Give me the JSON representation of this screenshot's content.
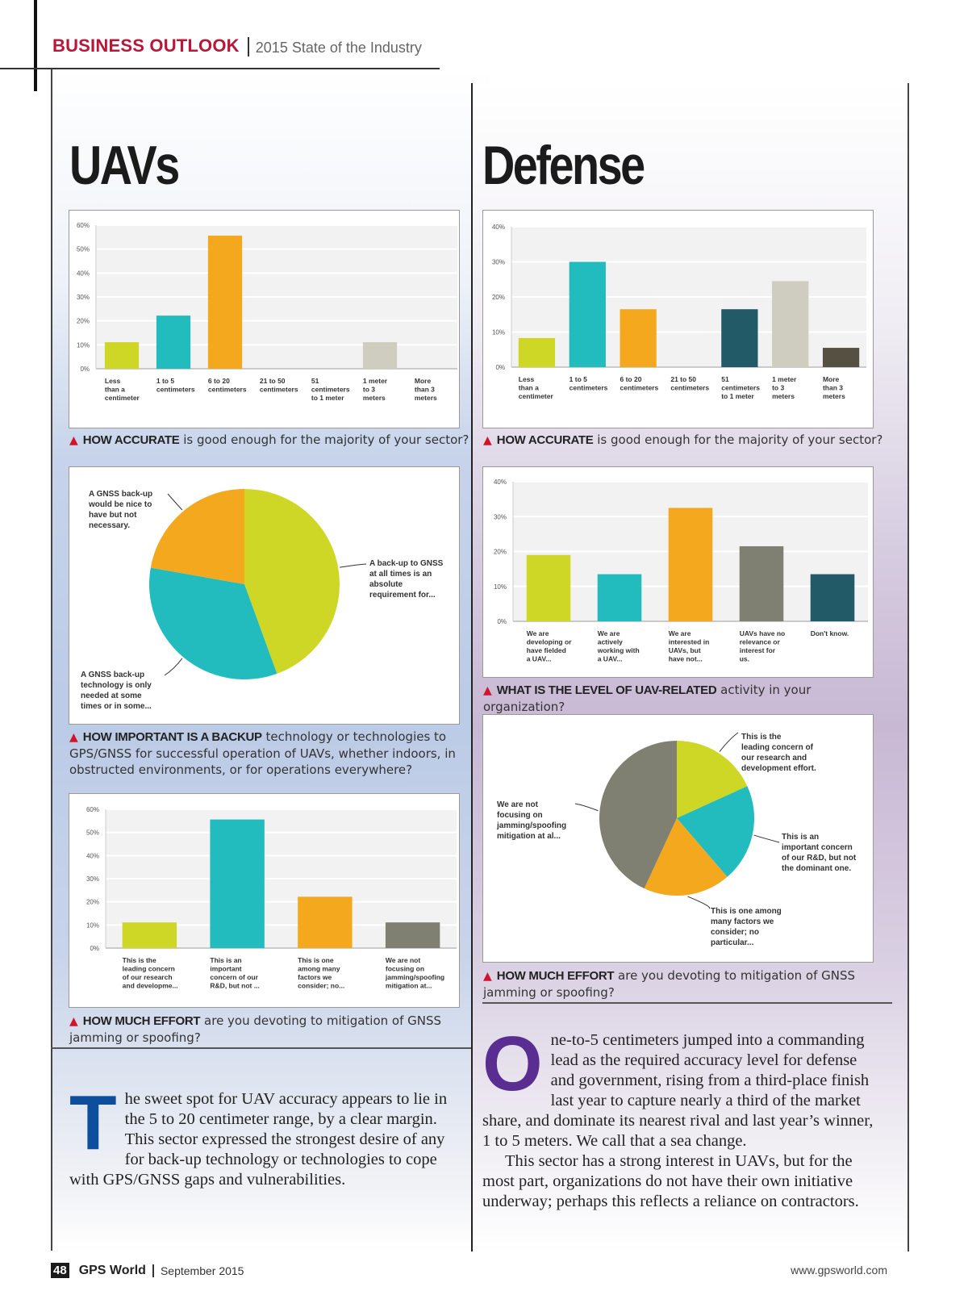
{
  "header": {
    "section": "BUSINESS OUTLOOK",
    "subtitle": "2015 State of the Industry"
  },
  "colors": {
    "lime": "#cfd726",
    "teal": "#22bcbe",
    "orange": "#f4a81d",
    "beige": "#cfccc0",
    "gray": "#7f8072",
    "navy": "#235a68",
    "darkbrown": "#555042",
    "accent_red": "#d0142c",
    "section_red": "#b8173a"
  },
  "uavs": {
    "title": "UAVs",
    "q1": {
      "bold": "HOW ACCURATE",
      "rest": " is good enough for the majority of your sector?"
    },
    "q2": {
      "bold": "HOW IMPORTANT IS A BACKUP",
      "rest": " technology or technologies to GPS/GNSS for successful operation of UAVs, whether indoors, in obstructed environments, or for operations everywhere?"
    },
    "q3": {
      "bold": "HOW MUCH EFFORT",
      "rest": " are you devoting to mitigation of GNSS jamming or spoofing?"
    },
    "dropcap": "T",
    "body": "he sweet spot for UAV accuracy appears to lie in the 5 to 20 centimeter range, by a clear margin. This sector expressed the strongest desire of any for back-up technology or technologies to cope with GPS/GNSS gaps and vulnerabilities."
  },
  "defense": {
    "title": "Defense",
    "q1": {
      "bold": "HOW ACCURATE",
      "rest": " is good enough for the majority of your sector?"
    },
    "q2": {
      "bold": "WHAT IS THE LEVEL OF UAV-RELATED",
      "rest": " activity in your organization?"
    },
    "q3": {
      "bold": "HOW MUCH EFFORT",
      "rest": " are you devoting to mitigation of GNSS jamming or spoofing?"
    },
    "dropcap": "O",
    "body1": "ne-to-5 centimeters jumped into a commanding lead as the required accuracy level for defense and government, rising from a third-place finish last year to capture nearly a third of the market share, and dominate its nearest rival and last year’s winner, 1 to 5 meters. We call that a sea change.",
    "body2": "This sector has a strong interest in UAVs, but for the most part, organizations do not have their own initiative underway; perhaps this reflects a reliance on contractors."
  },
  "footer": {
    "page": "48",
    "magazine": "GPS World",
    "issue": "September 2015",
    "url": "www.gpsworld.com"
  },
  "chart_data": [
    {
      "id": "uav-accuracy",
      "type": "bar",
      "title": "HOW ACCURATE is good enough for the majority of your sector? (UAVs)",
      "categories": [
        [
          "Less",
          "than a",
          "centimeter"
        ],
        [
          "1 to 5",
          "centimeters"
        ],
        [
          "6 to 20",
          "centimeters"
        ],
        [
          "21 to 50",
          "centimeters"
        ],
        [
          "51",
          "centimeters",
          "to 1 meter"
        ],
        [
          "1 meter",
          "to 3",
          "meters"
        ],
        [
          "More",
          "than 3",
          "meters"
        ]
      ],
      "values": [
        11.1,
        22.2,
        55.6,
        0,
        0,
        11.1,
        0
      ],
      "colors": [
        "#cfd726",
        "#22bcbe",
        "#f4a81d",
        "#cfccc0",
        "#cfccc0",
        "#cfccc0",
        "#cfccc0"
      ],
      "ylim": [
        0,
        60
      ],
      "yticks": [
        "0%",
        "10%",
        "20%",
        "30%",
        "40%",
        "50%",
        "60%"
      ],
      "xlabel": "",
      "ylabel": "",
      "grid": true
    },
    {
      "id": "uav-backup",
      "type": "pie",
      "title": "HOW IMPORTANT IS A BACKUP technology or technologies to GPS/GNSS (UAVs)",
      "labels": [
        [
          "A back-up to GNSS",
          "at all times is an",
          "absolute",
          "requirement for..."
        ],
        [
          "A GNSS back-up",
          "technology is only",
          "needed at some",
          "times or in some..."
        ],
        [
          "A GNSS back-up",
          "would be nice to",
          "have but not",
          "necessary."
        ]
      ],
      "values": [
        44.4,
        33.3,
        22.2
      ],
      "colors": [
        "#cfd726",
        "#22bcbe",
        "#f4a81d"
      ]
    },
    {
      "id": "uav-effort",
      "type": "bar",
      "title": "HOW MUCH EFFORT are you devoting to mitigation of GNSS jamming or spoofing? (UAVs)",
      "categories": [
        [
          "This is the",
          "leading concern",
          "of our research",
          "and developme..."
        ],
        [
          "This is an",
          "important",
          "concern of our",
          "R&D, but not ..."
        ],
        [
          "This is one",
          "among many",
          "factors we",
          "consider; no..."
        ],
        [
          "We are not",
          "focusing on",
          "jamming/spoofing",
          "mitigation at..."
        ]
      ],
      "values": [
        11.1,
        55.6,
        22.2,
        11.1
      ],
      "colors": [
        "#cfd726",
        "#22bcbe",
        "#f4a81d",
        "#7f8072"
      ],
      "ylim": [
        0,
        60
      ],
      "yticks": [
        "0%",
        "10%",
        "20%",
        "30%",
        "40%",
        "50%",
        "60%"
      ],
      "xlabel": "",
      "ylabel": "",
      "grid": true
    },
    {
      "id": "defense-accuracy",
      "type": "bar",
      "title": "HOW ACCURATE is good enough for the majority of your sector? (Defense)",
      "categories": [
        [
          "Less",
          "than a",
          "centimeter"
        ],
        [
          "1 to 5",
          "centimeters"
        ],
        [
          "6 to 20",
          "centimeters"
        ],
        [
          "21 to 50",
          "centimeters"
        ],
        [
          "51",
          "centimeters",
          "to 1 meter"
        ],
        [
          "1 meter",
          "to 3",
          "meters"
        ],
        [
          "More",
          "than 3",
          "meters"
        ]
      ],
      "values": [
        8.3,
        30.0,
        16.5,
        0,
        16.5,
        24.5,
        5.5
      ],
      "colors": [
        "#cfd726",
        "#22bcbe",
        "#f4a81d",
        "#cfccc0",
        "#235a68",
        "#cfccc0",
        "#555042"
      ],
      "ylim": [
        0,
        40
      ],
      "yticks": [
        "0%",
        "10%",
        "20%",
        "30%",
        "40%"
      ],
      "xlabel": "",
      "ylabel": "",
      "grid": true
    },
    {
      "id": "defense-uav-activity",
      "type": "bar",
      "title": "WHAT IS THE LEVEL OF UAV-RELATED activity in your organization? (Defense)",
      "categories": [
        [
          "We are",
          "developing or",
          "have fielded",
          "a UAV..."
        ],
        [
          "We are",
          "actively",
          "working with",
          "a UAV..."
        ],
        [
          "We are",
          "interested in",
          "UAVs, but",
          "have not..."
        ],
        [
          "UAVs have no",
          "relevance or",
          "interest for",
          "us."
        ],
        [
          "Don't know."
        ]
      ],
      "values": [
        19.0,
        13.5,
        32.5,
        21.5,
        13.5
      ],
      "colors": [
        "#cfd726",
        "#22bcbe",
        "#f4a81d",
        "#7f8072",
        "#235a68"
      ],
      "ylim": [
        0,
        40
      ],
      "yticks": [
        "0%",
        "10%",
        "20%",
        "30%",
        "40%"
      ],
      "xlabel": "",
      "ylabel": "",
      "grid": true
    },
    {
      "id": "defense-effort",
      "type": "pie",
      "title": "HOW MUCH EFFORT are you devoting to mitigation of GNSS jamming or spoofing? (Defense)",
      "labels": [
        [
          "This is the",
          "leading concern of",
          "our research and",
          "development effort."
        ],
        [
          "This is an",
          "important concern",
          "of our R&D, but not",
          "the dominant one."
        ],
        [
          "This is one among",
          "many factors we",
          "consider; no",
          "particular..."
        ],
        [
          "We are not",
          "focusing on",
          "jamming/spoofing",
          "mitigation at al..."
        ]
      ],
      "values": [
        18.2,
        20.5,
        18.2,
        43.1
      ],
      "colors": [
        "#cfd726",
        "#22bcbe",
        "#f4a81d",
        "#7f8072"
      ]
    }
  ]
}
